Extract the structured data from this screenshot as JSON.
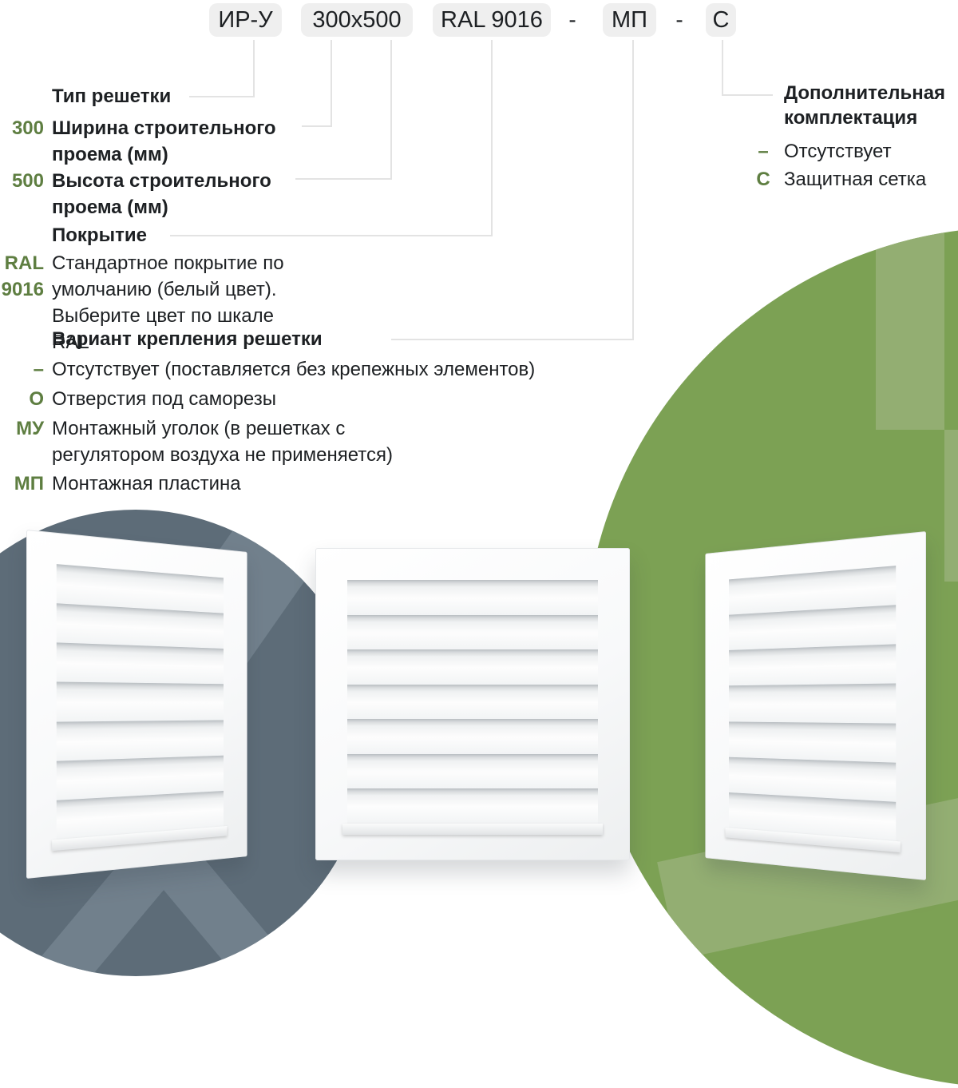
{
  "product_code": {
    "badges": [
      {
        "label": "ИР-У"
      },
      {
        "label": "300х500"
      },
      {
        "label": "RAL 9016"
      },
      {
        "label": "МП"
      },
      {
        "label": "С"
      }
    ],
    "separator": "-"
  },
  "legend": {
    "left": [
      {
        "code": "",
        "label": "Тип решетки"
      },
      {
        "code": "300",
        "label": "Ширина строительного проема (мм)"
      },
      {
        "code": "500",
        "label": "Высота строительного проема (мм)"
      },
      {
        "code": "",
        "label": "Покрытие"
      },
      {
        "code": "RAL 9016",
        "label": "Стандартное покрытие по умолчанию (белый цвет). Выберите цвет по шкале RAL"
      },
      {
        "code": "",
        "label": "Вариант крепления решетки"
      },
      {
        "code": "–",
        "label": "Отсутствует (поставляется без крепежных элементов)"
      },
      {
        "code": "О",
        "label": "Отверстия под саморезы"
      },
      {
        "code": "МУ",
        "label": "Монтажный уголок (в решетках с регулятором воздуха не применяется)"
      },
      {
        "code": "МП",
        "label": "Монтажная пластина"
      }
    ],
    "right": {
      "title": "Дополнительная комплектация",
      "items": [
        {
          "code": "–",
          "label": "Отсутствует"
        },
        {
          "code": "С",
          "label": "Защитная сетка"
        }
      ]
    }
  },
  "colors": {
    "accent_green_text": "#5e7e41",
    "badge_background": "#efefef",
    "text": "#1d2023",
    "connector_line": "#e3e3e3",
    "slate_circle": "#5d6c78",
    "slate_circle_light": "#71808c",
    "green_circle": "#7ca154",
    "green_circle_light": "#93ae72"
  }
}
